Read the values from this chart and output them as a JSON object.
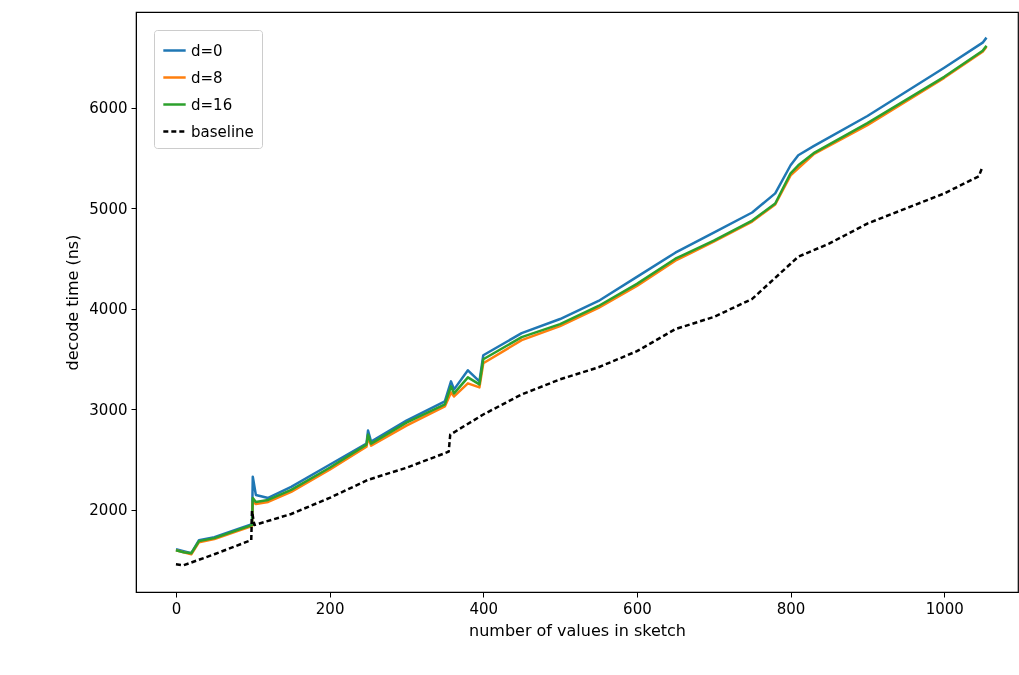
{
  "chart_data": {
    "type": "line",
    "xlabel": "number of values in sketch",
    "ylabel": "decode time (ns)",
    "xlim": [
      -52,
      1096
    ],
    "ylim": [
      1184,
      6955
    ],
    "xticks": [
      0,
      200,
      400,
      600,
      800,
      1000
    ],
    "yticks": [
      2000,
      3000,
      4000,
      5000,
      6000
    ],
    "grid": false,
    "legend": "top left",
    "series": [
      {
        "name": "d=0",
        "color": "#1f77b4",
        "line_style": "solid",
        "x": [
          0,
          10,
          20,
          30,
          50,
          80,
          99,
          100,
          104,
          120,
          150,
          200,
          248,
          250,
          254,
          300,
          350,
          358,
          362,
          380,
          395,
          400,
          450,
          500,
          550,
          600,
          650,
          700,
          750,
          780,
          800,
          810,
          830,
          900,
          1000,
          1050,
          1055
        ],
        "values": [
          1610,
          1590,
          1570,
          1700,
          1730,
          1810,
          1860,
          2330,
          2150,
          2120,
          2230,
          2450,
          2660,
          2790,
          2680,
          2890,
          3080,
          3280,
          3200,
          3390,
          3280,
          3540,
          3760,
          3900,
          4080,
          4320,
          4560,
          4760,
          4960,
          5150,
          5430,
          5530,
          5620,
          5920,
          6400,
          6650,
          6700
        ]
      },
      {
        "name": "d=8",
        "color": "#ff7f0e",
        "line_style": "solid",
        "x": [
          0,
          10,
          20,
          30,
          50,
          80,
          99,
          100,
          104,
          120,
          150,
          200,
          248,
          250,
          254,
          300,
          350,
          358,
          362,
          380,
          395,
          400,
          450,
          500,
          550,
          600,
          650,
          700,
          750,
          780,
          800,
          810,
          830,
          900,
          1000,
          1050,
          1055
        ],
        "values": [
          1600,
          1580,
          1560,
          1680,
          1710,
          1790,
          1840,
          2080,
          2060,
          2080,
          2180,
          2400,
          2630,
          2720,
          2640,
          2840,
          3030,
          3170,
          3130,
          3260,
          3220,
          3460,
          3690,
          3830,
          4010,
          4230,
          4480,
          4670,
          4870,
          5040,
          5330,
          5400,
          5540,
          5830,
          6300,
          6560,
          6610
        ]
      },
      {
        "name": "d=16",
        "color": "#2ca02c",
        "line_style": "solid",
        "x": [
          0,
          10,
          20,
          30,
          50,
          80,
          99,
          100,
          104,
          120,
          150,
          200,
          248,
          250,
          254,
          300,
          350,
          358,
          362,
          380,
          395,
          400,
          450,
          500,
          550,
          600,
          650,
          700,
          750,
          780,
          800,
          810,
          830,
          900,
          1000,
          1050,
          1055
        ],
        "values": [
          1600,
          1580,
          1570,
          1690,
          1720,
          1800,
          1850,
          2120,
          2080,
          2100,
          2200,
          2420,
          2650,
          2750,
          2660,
          2870,
          3050,
          3230,
          3160,
          3320,
          3250,
          3500,
          3720,
          3850,
          4030,
          4250,
          4500,
          4680,
          4880,
          5050,
          5350,
          5430,
          5550,
          5850,
          6310,
          6570,
          6620
        ]
      },
      {
        "name": "baseline",
        "color": "#000000",
        "line_style": "dashed",
        "x": [
          0,
          10,
          50,
          98,
          99,
          102,
          150,
          200,
          250,
          300,
          355,
          357,
          400,
          450,
          500,
          550,
          600,
          650,
          700,
          750,
          800,
          810,
          850,
          900,
          950,
          1000,
          1045,
          1050
        ],
        "values": [
          1460,
          1450,
          1560,
          1700,
          1990,
          1850,
          1960,
          2120,
          2300,
          2420,
          2580,
          2750,
          2950,
          3150,
          3300,
          3420,
          3580,
          3800,
          3920,
          4100,
          4450,
          4520,
          4650,
          4850,
          5000,
          5150,
          5320,
          5420
        ]
      }
    ]
  }
}
